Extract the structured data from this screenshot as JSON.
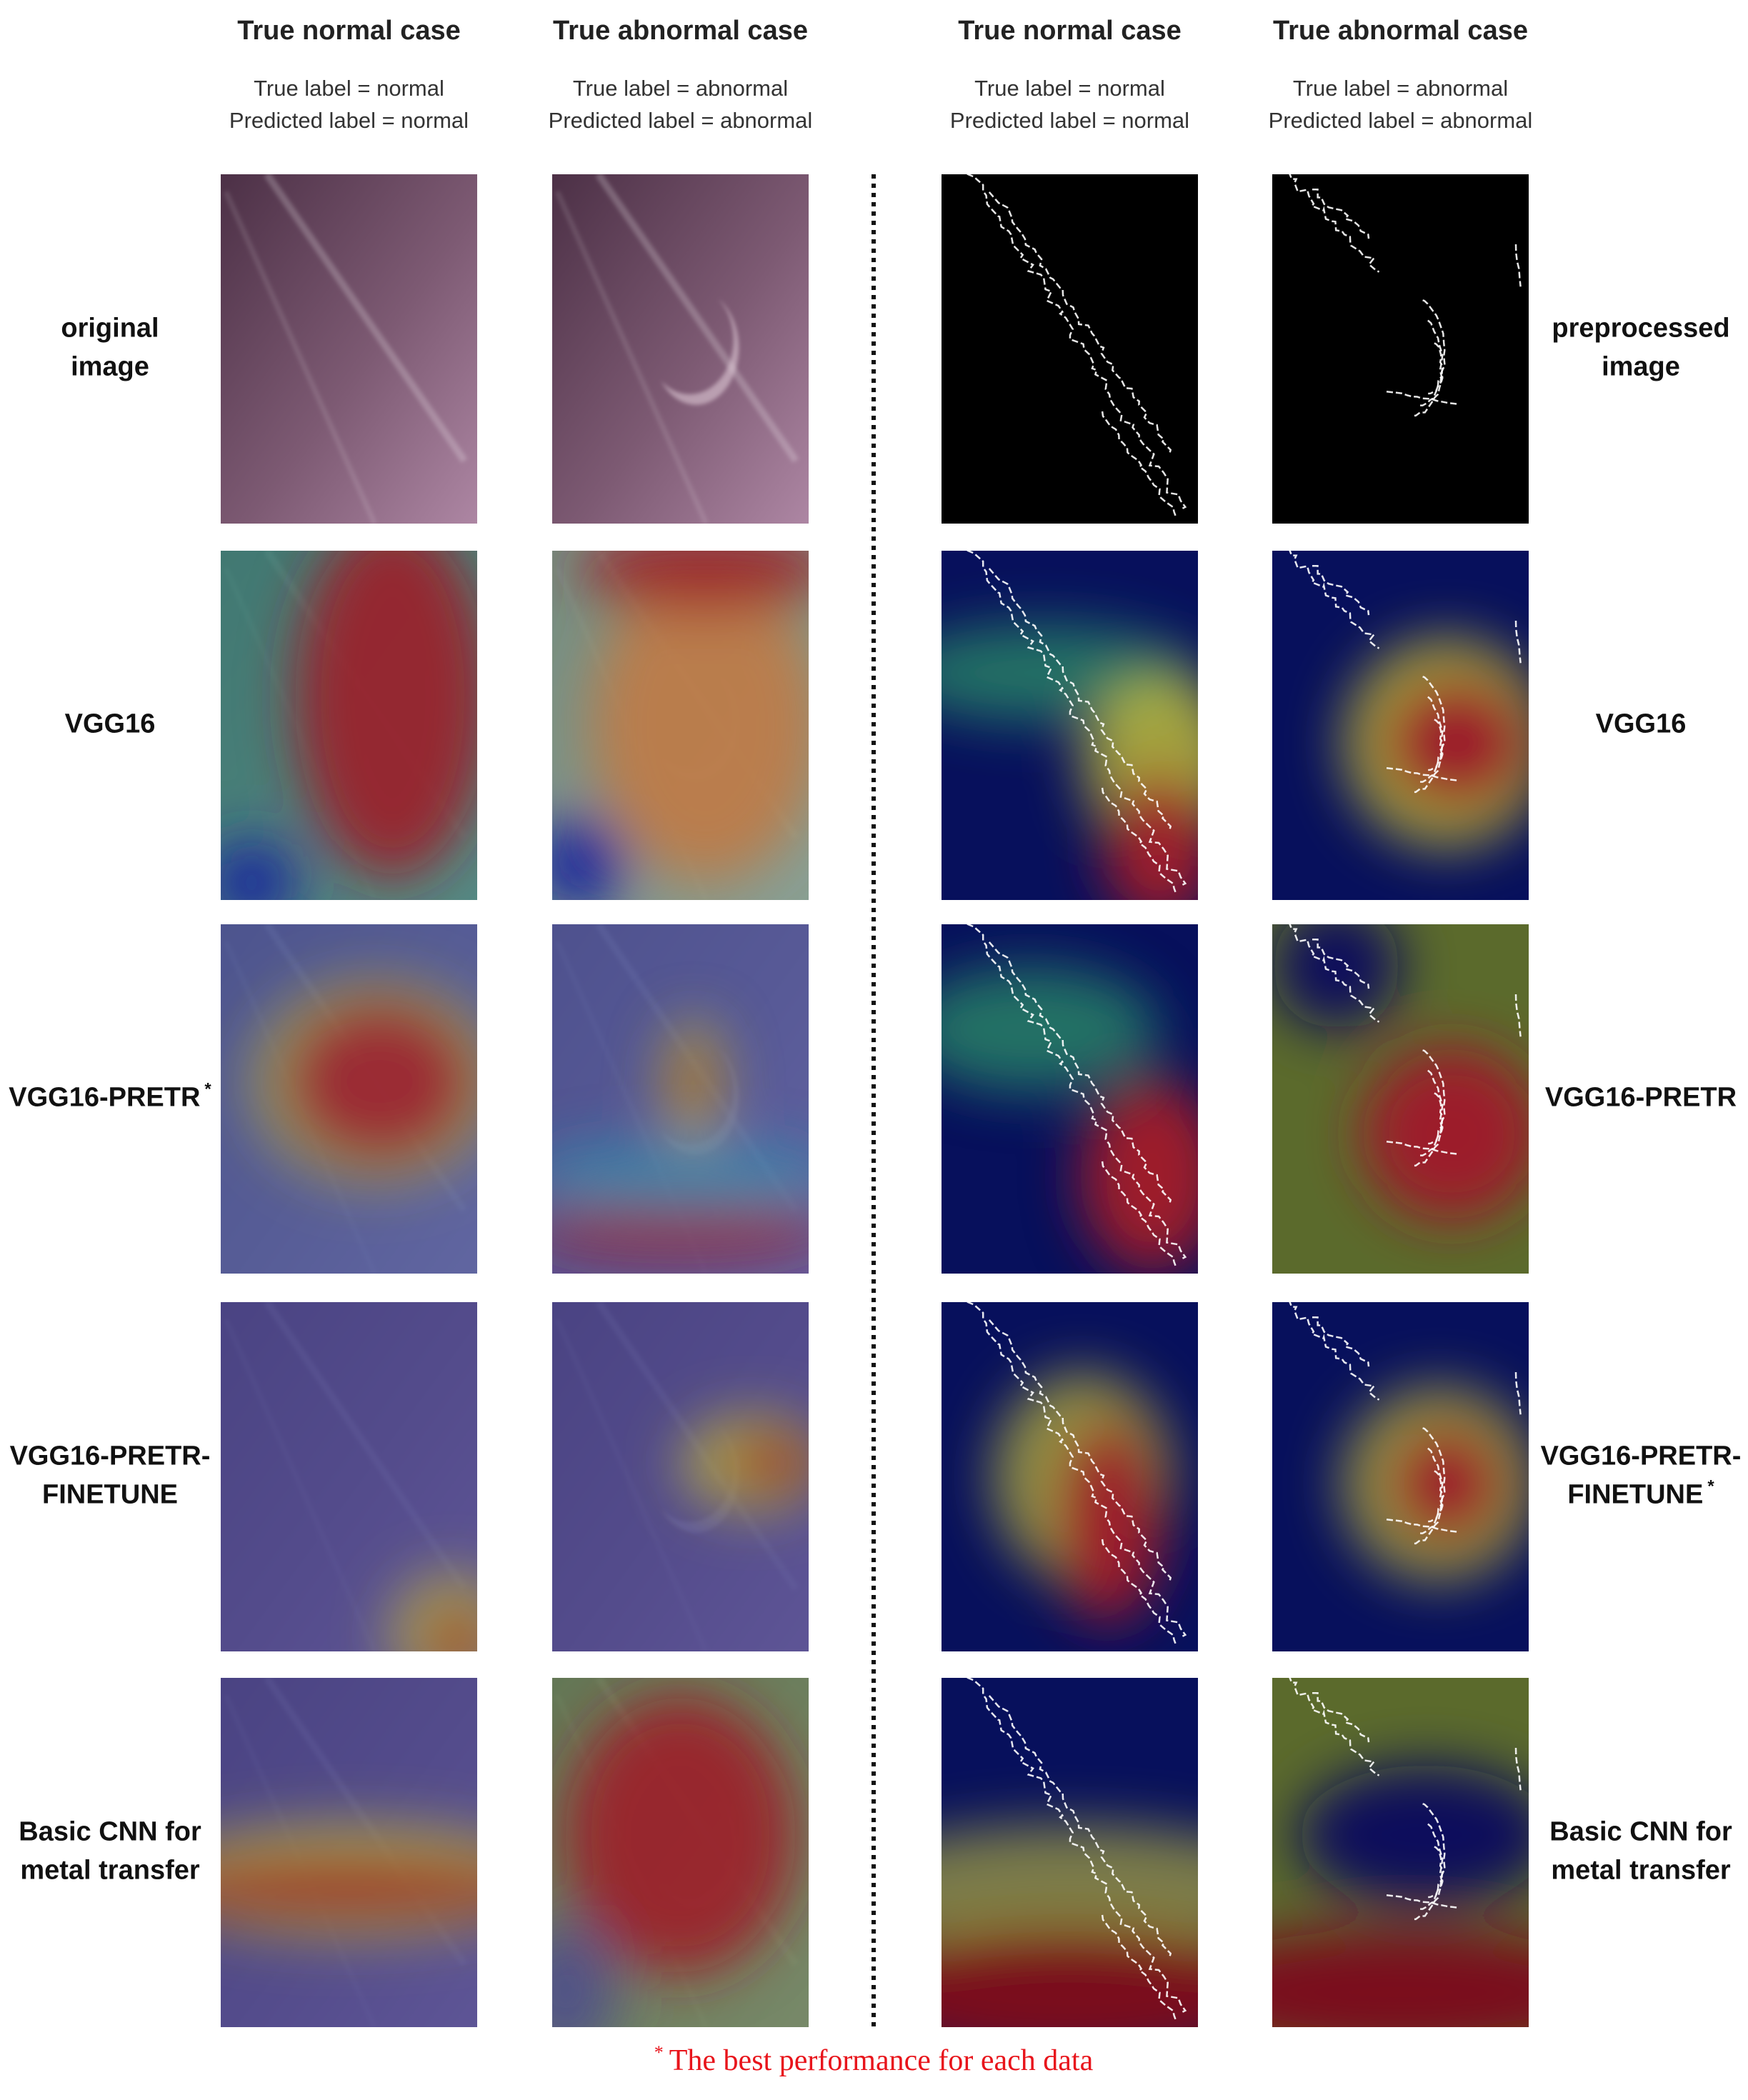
{
  "headers": [
    {
      "title": "True normal case",
      "true_label": "True label = normal",
      "predicted_label": "Predicted label = normal"
    },
    {
      "title": "True abnormal case",
      "true_label": "True label = abnormal",
      "predicted_label": "Predicted label = abnormal"
    },
    {
      "title": "True normal case",
      "true_label": "True label = normal",
      "predicted_label": "Predicted label = normal"
    },
    {
      "title": "True abnormal case",
      "true_label": "True label = abnormal",
      "predicted_label": "Predicted label = abnormal"
    }
  ],
  "left_rows": [
    {
      "lines": [
        "original",
        "image"
      ]
    },
    {
      "lines": [
        "VGG16"
      ]
    },
    {
      "lines": [
        "VGG16-PRETR"
      ],
      "marker": "*",
      "highlight": true
    },
    {
      "lines": [
        "VGG16-PRETR-",
        "FINETUNE"
      ]
    },
    {
      "lines": [
        "Basic CNN for",
        "metal transfer"
      ]
    }
  ],
  "right_rows": [
    {
      "lines": [
        "preprocessed",
        "image"
      ]
    },
    {
      "lines": [
        "VGG16"
      ]
    },
    {
      "lines": [
        "VGG16-PRETR"
      ]
    },
    {
      "lines": [
        "VGG16-PRETR-",
        "FINETUNE"
      ],
      "marker": "*",
      "highlight": true
    },
    {
      "lines": [
        "Basic CNN for",
        "metal transfer"
      ]
    }
  ],
  "highlight_color": "#e8141b",
  "footnote": {
    "marker": "*",
    "text": "The best performance for each data"
  }
}
